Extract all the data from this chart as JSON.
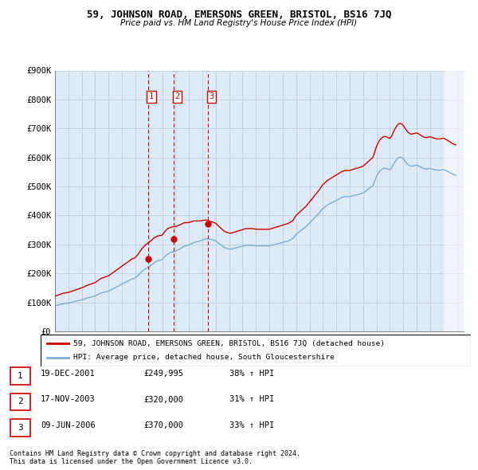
{
  "title": "59, JOHNSON ROAD, EMERSONS GREEN, BRISTOL, BS16 7JQ",
  "subtitle": "Price paid vs. HM Land Registry's House Price Index (HPI)",
  "sale_dates_float": [
    2001.96,
    2003.88,
    2006.44
  ],
  "sale_prices": [
    249995,
    320000,
    370000
  ],
  "sale_labels": [
    "1",
    "2",
    "3"
  ],
  "hpi_color": "#7bafd4",
  "price_color": "#cc0000",
  "vline_color": "#cc0000",
  "background_color": "#ffffff",
  "plot_bg_color": "#deeaf5",
  "grid_color": "#b8cfe0",
  "ylim": [
    0,
    900000
  ],
  "xlim_start": 1995.0,
  "xlim_end": 2025.5,
  "ylabel_ticks": [
    0,
    100000,
    200000,
    300000,
    400000,
    500000,
    600000,
    700000,
    800000,
    900000
  ],
  "ytick_labels": [
    "£0",
    "£100K",
    "£200K",
    "£300K",
    "£400K",
    "£500K",
    "£600K",
    "£700K",
    "£800K",
    "£900K"
  ],
  "legend_price_label": "59, JOHNSON ROAD, EMERSONS GREEN, BRISTOL, BS16 7JQ (detached house)",
  "legend_hpi_label": "HPI: Average price, detached house, South Gloucestershire",
  "footer_line1": "Contains HM Land Registry data © Crown copyright and database right 2024.",
  "footer_line2": "This data is licensed under the Open Government Licence v3.0.",
  "table_rows": [
    [
      "1",
      "19-DEC-2001",
      "£249,995",
      "38% ↑ HPI"
    ],
    [
      "2",
      "17-NOV-2003",
      "£320,000",
      "31% ↑ HPI"
    ],
    [
      "3",
      "09-JUN-2006",
      "£370,000",
      "33% ↑ HPI"
    ]
  ],
  "hpi_monthly": [
    88000,
    89000,
    90000,
    91000,
    92000,
    93000,
    94000,
    95000,
    95500,
    96000,
    96500,
    97000,
    97500,
    98000,
    99000,
    100000,
    101000,
    102000,
    103000,
    104000,
    105000,
    106000,
    107000,
    108000,
    109000,
    110000,
    111000,
    113000,
    114000,
    115000,
    116000,
    117000,
    118000,
    119000,
    120000,
    121000,
    122000,
    124000,
    126000,
    128000,
    130000,
    132000,
    133000,
    134000,
    135000,
    136000,
    137000,
    138000,
    139000,
    141000,
    143000,
    145000,
    147000,
    149000,
    151000,
    153000,
    155000,
    157000,
    159000,
    161000,
    163000,
    165000,
    167000,
    169000,
    171000,
    173000,
    175000,
    177000,
    179000,
    181000,
    182000,
    183000,
    185000,
    188000,
    191000,
    195000,
    199000,
    203000,
    207000,
    210000,
    213000,
    216000,
    218000,
    220000,
    222000,
    225000,
    228000,
    231000,
    234000,
    237000,
    239000,
    241000,
    243000,
    244000,
    245000,
    246000,
    248000,
    252000,
    256000,
    260000,
    264000,
    267000,
    269000,
    271000,
    273000,
    274000,
    275000,
    276000,
    277000,
    279000,
    281000,
    283000,
    285000,
    287000,
    290000,
    292000,
    294000,
    295000,
    296000,
    297000,
    298000,
    300000,
    302000,
    304000,
    306000,
    307000,
    308000,
    309000,
    310000,
    311000,
    312000,
    313000,
    315000,
    317000,
    318000,
    319000,
    320000,
    320000,
    319000,
    318000,
    317000,
    316000,
    315000,
    314000,
    312000,
    309000,
    306000,
    303000,
    300000,
    297000,
    294000,
    291000,
    289000,
    287000,
    286000,
    285000,
    284000,
    284000,
    284000,
    285000,
    286000,
    287000,
    288000,
    289000,
    290000,
    291000,
    292000,
    293000,
    294000,
    295000,
    296000,
    297000,
    297000,
    297000,
    297000,
    297000,
    297000,
    297000,
    296000,
    296000,
    295000,
    295000,
    295000,
    295000,
    295000,
    295000,
    295000,
    295000,
    295000,
    295000,
    295000,
    295000,
    295000,
    296000,
    297000,
    298000,
    299000,
    300000,
    301000,
    302000,
    303000,
    304000,
    305000,
    306000,
    307000,
    308000,
    309000,
    310000,
    311000,
    312000,
    314000,
    316000,
    318000,
    320000,
    325000,
    330000,
    335000,
    338000,
    341000,
    344000,
    347000,
    350000,
    353000,
    356000,
    359000,
    362000,
    366000,
    370000,
    374000,
    378000,
    382000,
    386000,
    390000,
    394000,
    398000,
    402000,
    406000,
    410000,
    415000,
    420000,
    424000,
    427000,
    430000,
    433000,
    436000,
    438000,
    440000,
    442000,
    444000,
    446000,
    448000,
    450000,
    452000,
    454000,
    456000,
    458000,
    460000,
    462000,
    463000,
    464000,
    465000,
    465000,
    465000,
    465000,
    465000,
    466000,
    467000,
    468000,
    469000,
    470000,
    471000,
    472000,
    473000,
    474000,
    475000,
    476000,
    478000,
    480000,
    483000,
    486000,
    489000,
    492000,
    495000,
    498000,
    500000,
    505000,
    515000,
    525000,
    535000,
    542000,
    548000,
    553000,
    557000,
    560000,
    562000,
    563000,
    563000,
    562000,
    560000,
    558000,
    558000,
    562000,
    568000,
    575000,
    582000,
    588000,
    593000,
    597000,
    600000,
    601000,
    600000,
    598000,
    595000,
    590000,
    585000,
    580000,
    576000,
    573000,
    571000,
    570000,
    570000,
    571000,
    572000,
    573000,
    573000,
    572000,
    570000,
    568000,
    566000,
    564000,
    562000,
    561000,
    560000,
    560000,
    561000,
    562000,
    562000,
    561000,
    560000,
    559000,
    558000,
    557000,
    556000,
    556000,
    556000,
    556000,
    557000,
    558000,
    558000,
    557000,
    555000,
    553000,
    551000,
    549000,
    547000,
    545000,
    543000,
    541000,
    540000,
    539000
  ]
}
